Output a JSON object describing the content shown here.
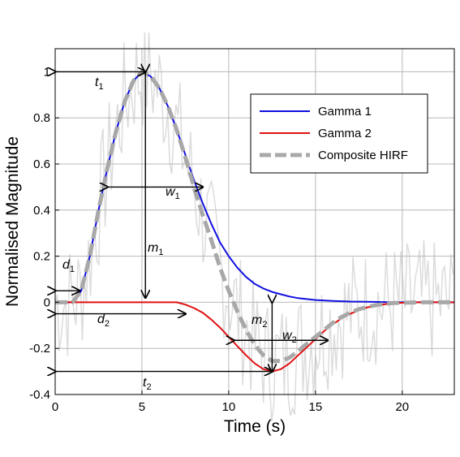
{
  "chart_data": {
    "type": "line",
    "xlabel": "Time (s)",
    "ylabel": "Normalised Magnitude",
    "xlim": [
      0,
      23
    ],
    "ylim": [
      -0.4,
      1.1
    ],
    "x_ticks": [
      "0",
      "5",
      "10",
      "15",
      "20"
    ],
    "y_ticks": [
      "-0.4",
      "-0.2",
      "0",
      "0.2",
      "0.4",
      "0.6",
      "0.8",
      "1"
    ],
    "grid": true,
    "legend": {
      "position": "top-right",
      "entries": [
        "Gamma 1",
        "Gamma 2",
        "Composite HIRF"
      ]
    },
    "series": [
      {
        "name": "Gamma 1",
        "color": "#1010e0",
        "style": "solid",
        "x": [
          0,
          0.5,
          1,
          1.5,
          2,
          2.5,
          3,
          3.5,
          4,
          4.5,
          5,
          5.5,
          6,
          6.5,
          7,
          7.5,
          8,
          8.5,
          9,
          9.5,
          10,
          10.5,
          11,
          11.5,
          12,
          12.5,
          13,
          13.5,
          14,
          15,
          16,
          17,
          18,
          19,
          20,
          21,
          22,
          23
        ],
        "y": [
          0,
          0,
          0,
          0.05,
          0.2,
          0.4,
          0.58,
          0.74,
          0.87,
          0.96,
          1.0,
          0.98,
          0.93,
          0.85,
          0.75,
          0.64,
          0.53,
          0.43,
          0.34,
          0.26,
          0.2,
          0.15,
          0.11,
          0.08,
          0.06,
          0.045,
          0.035,
          0.025,
          0.018,
          0.01,
          0.006,
          0.003,
          0.002,
          0.001,
          0,
          0,
          0,
          0
        ]
      },
      {
        "name": "Gamma 2",
        "color": "#e01010",
        "style": "solid",
        "x": [
          0,
          1,
          2,
          3,
          4,
          5,
          6,
          6.5,
          7,
          7.5,
          8,
          8.5,
          9,
          9.5,
          10,
          10.5,
          11,
          11.5,
          12,
          12.5,
          13,
          13.5,
          14,
          14.5,
          15,
          15.5,
          16,
          16.5,
          17,
          17.5,
          18,
          18.5,
          19,
          19.5,
          20,
          21,
          22,
          23
        ],
        "y": [
          0,
          0,
          0,
          0,
          0,
          0,
          0,
          0,
          0,
          -0.01,
          -0.025,
          -0.045,
          -0.075,
          -0.11,
          -0.15,
          -0.19,
          -0.23,
          -0.265,
          -0.29,
          -0.3,
          -0.29,
          -0.265,
          -0.23,
          -0.195,
          -0.16,
          -0.125,
          -0.095,
          -0.07,
          -0.05,
          -0.035,
          -0.022,
          -0.014,
          -0.008,
          -0.004,
          -0.002,
          0,
          0,
          0
        ]
      },
      {
        "name": "Composite HIRF",
        "color": "#a8a8a8",
        "style": "dashed",
        "x": [
          0,
          0.5,
          1,
          1.5,
          2,
          2.5,
          3,
          3.5,
          4,
          4.5,
          5,
          5.5,
          6,
          6.5,
          7,
          7.5,
          8,
          8.5,
          9,
          9.5,
          10,
          10.5,
          11,
          11.5,
          12,
          12.5,
          13,
          13.5,
          14,
          14.5,
          15,
          15.5,
          16,
          16.5,
          17,
          17.5,
          18,
          18.5,
          19,
          19.5,
          20,
          21,
          22,
          23
        ],
        "y": [
          0,
          0,
          0,
          0.05,
          0.2,
          0.4,
          0.58,
          0.74,
          0.87,
          0.96,
          1.0,
          0.98,
          0.93,
          0.85,
          0.75,
          0.63,
          0.5,
          0.38,
          0.27,
          0.15,
          0.05,
          -0.04,
          -0.12,
          -0.185,
          -0.23,
          -0.255,
          -0.255,
          -0.24,
          -0.212,
          -0.18,
          -0.15,
          -0.12,
          -0.089,
          -0.064,
          -0.045,
          -0.03,
          -0.02,
          -0.012,
          -0.007,
          -0.003,
          -0.002,
          0,
          0,
          0
        ]
      }
    ],
    "annotations": [
      {
        "label": "t",
        "sub": "1"
      },
      {
        "label": "d",
        "sub": "1"
      },
      {
        "label": "w",
        "sub": "1"
      },
      {
        "label": "m",
        "sub": "1"
      },
      {
        "label": "d",
        "sub": "2"
      },
      {
        "label": "m",
        "sub": "2"
      },
      {
        "label": "w",
        "sub": "2"
      },
      {
        "label": "t",
        "sub": "2"
      }
    ]
  }
}
